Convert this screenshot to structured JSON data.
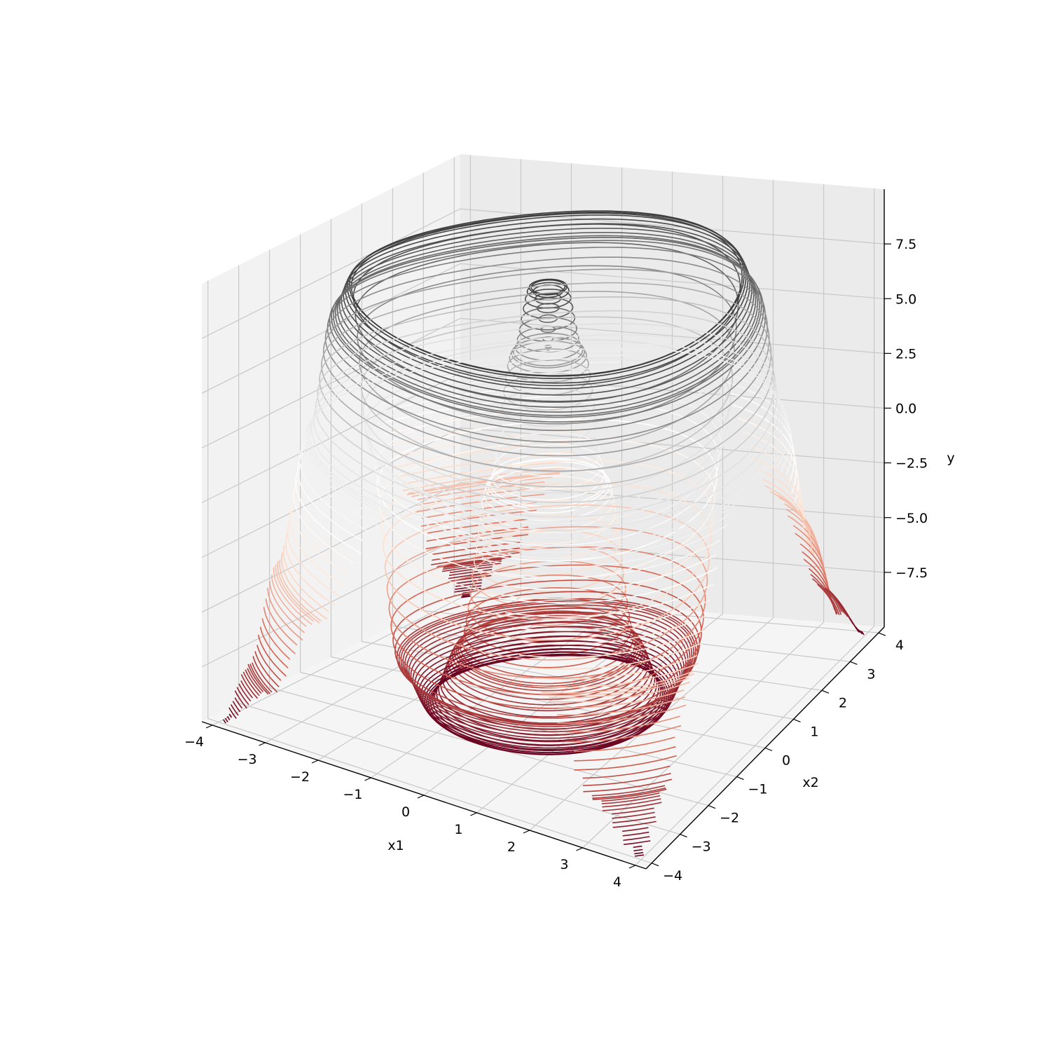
{
  "chart_data": {
    "type": "surface",
    "plot_style": "contour3d",
    "title": "",
    "xlabel": "x1",
    "ylabel": "x2",
    "zlabel": "y",
    "xlim": [
      -4.2,
      4.2
    ],
    "ylim": [
      -4.2,
      4.2
    ],
    "zlim": [
      -10,
      10
    ],
    "x_ticks": [
      "−4",
      "−3",
      "−2",
      "−1",
      "0",
      "1",
      "2",
      "3",
      "4"
    ],
    "y_ticks": [
      "−4",
      "−3",
      "−2",
      "−1",
      "0",
      "1",
      "2",
      "3",
      "4"
    ],
    "z_ticks": [
      "−7.5",
      "−5.0",
      "−2.5",
      "0.0",
      "2.5",
      "5.0",
      "7.5"
    ],
    "grid": true,
    "colormap": "RdGy",
    "colormap_stops": [
      "#67001f",
      "#d6604d",
      "#fddbc7",
      "#ffffff",
      "#e0e0e0",
      "#878787",
      "#1a1a1a"
    ],
    "surface_profile": {
      "description_of_depicted_function": "radially symmetric: central peak, ring trough, outer ring crest, deep minima toward corners",
      "radius": [
        0.0,
        0.3,
        0.6,
        1.0,
        1.5,
        2.0,
        2.5,
        3.0,
        3.3,
        3.6,
        4.0,
        4.5,
        5.0,
        5.6
      ],
      "value": [
        6.0,
        9.0,
        6.0,
        0.0,
        -7.5,
        -10.0,
        -8.0,
        2.0,
        9.0,
        7.5,
        2.0,
        -4.0,
        -8.0,
        -10.0
      ]
    },
    "pane_color": "#f2f2f2",
    "grid_color": "#c8c8c8"
  }
}
